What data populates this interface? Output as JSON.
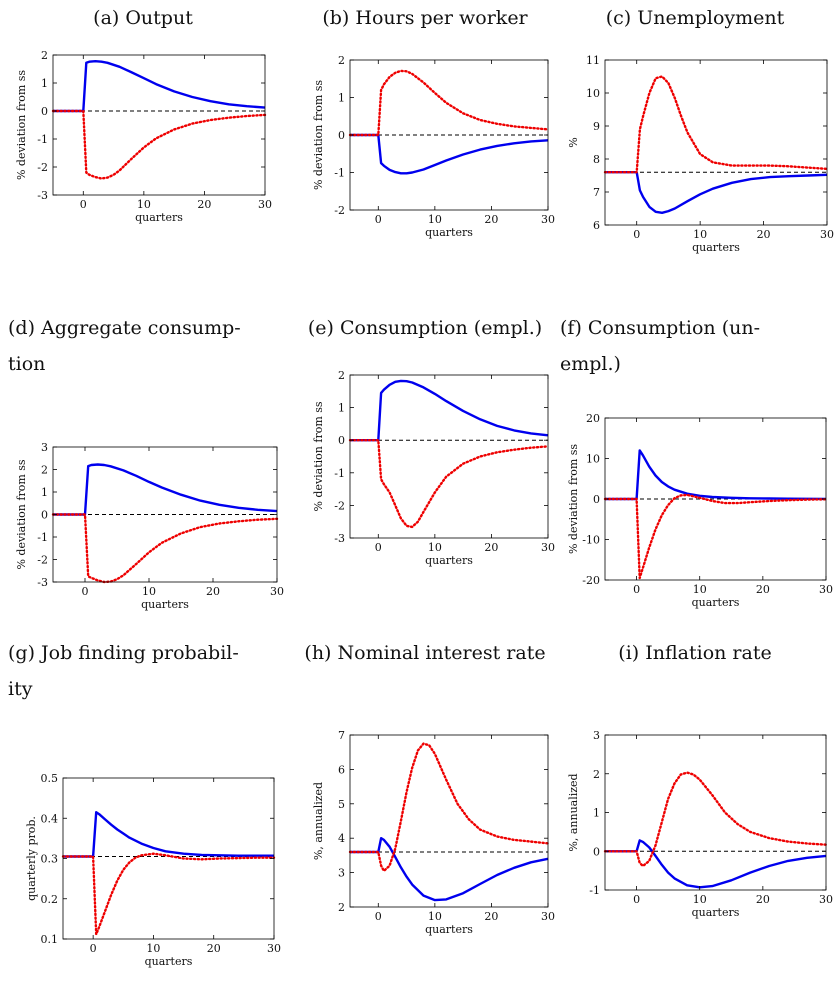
{
  "chart_data": [
    {
      "id": "a",
      "type": "line",
      "title": "(a) Output",
      "xlabel": "quarters",
      "ylabel": "% deviation from ss",
      "xlim": [
        -5,
        30
      ],
      "ylim": [
        -3,
        2
      ],
      "xticks": [
        0,
        10,
        20,
        30
      ],
      "yticks": [
        -3,
        -2,
        -1,
        0,
        1,
        2
      ],
      "reference": 0,
      "series": [
        {
          "color": "#0000ee",
          "style": "solid",
          "x": [
            -5,
            -1,
            0,
            0.5,
            1,
            2,
            3,
            4,
            6,
            8,
            10,
            12,
            15,
            18,
            21,
            24,
            27,
            30
          ],
          "y": [
            0,
            0,
            0,
            1.72,
            1.76,
            1.78,
            1.76,
            1.72,
            1.58,
            1.38,
            1.17,
            0.96,
            0.7,
            0.5,
            0.35,
            0.24,
            0.17,
            0.12
          ]
        },
        {
          "color": "#ee0000",
          "style": "dotted",
          "x": [
            -5,
            -1,
            0,
            0.5,
            1,
            2,
            3,
            4,
            5,
            6,
            8,
            10,
            12,
            15,
            18,
            21,
            24,
            27,
            30
          ],
          "y": [
            0,
            0,
            0,
            -2.2,
            -2.28,
            -2.36,
            -2.41,
            -2.38,
            -2.28,
            -2.12,
            -1.7,
            -1.3,
            -0.98,
            -0.66,
            -0.45,
            -0.32,
            -0.24,
            -0.18,
            -0.14
          ]
        }
      ]
    },
    {
      "id": "b",
      "type": "line",
      "title": "(b) Hours per worker",
      "xlabel": "quarters",
      "ylabel": "% deviation from ss",
      "xlim": [
        -5,
        30
      ],
      "ylim": [
        -2,
        2
      ],
      "xticks": [
        0,
        10,
        20,
        30
      ],
      "yticks": [
        -2,
        -1,
        0,
        1,
        2
      ],
      "reference": 0,
      "series": [
        {
          "color": "#0000ee",
          "style": "solid",
          "x": [
            -5,
            -1,
            0,
            0.5,
            1,
            2,
            3,
            4,
            5,
            6,
            8,
            10,
            12,
            15,
            18,
            21,
            24,
            27,
            30
          ],
          "y": [
            0,
            0,
            0,
            -0.75,
            -0.82,
            -0.93,
            -0.99,
            -1.02,
            -1.02,
            -1.0,
            -0.92,
            -0.8,
            -0.68,
            -0.52,
            -0.39,
            -0.29,
            -0.22,
            -0.17,
            -0.14
          ]
        },
        {
          "color": "#ee0000",
          "style": "dotted",
          "x": [
            -5,
            -1,
            0,
            0.5,
            1,
            2,
            3,
            4,
            5,
            6,
            8,
            10,
            12,
            15,
            18,
            21,
            24,
            27,
            30
          ],
          "y": [
            0,
            0,
            0,
            1.2,
            1.35,
            1.55,
            1.66,
            1.71,
            1.7,
            1.63,
            1.4,
            1.12,
            0.86,
            0.58,
            0.4,
            0.3,
            0.23,
            0.19,
            0.15
          ]
        }
      ]
    },
    {
      "id": "c",
      "type": "line",
      "title": "(c) Unemployment",
      "xlabel": "quarters",
      "ylabel": "%",
      "xlim": [
        -5,
        30
      ],
      "ylim": [
        6,
        11
      ],
      "xticks": [
        0,
        10,
        20,
        30
      ],
      "yticks": [
        6,
        7,
        8,
        9,
        10,
        11
      ],
      "reference": 7.6,
      "series": [
        {
          "color": "#0000ee",
          "style": "solid",
          "x": [
            -5,
            -1,
            0,
            0.5,
            1,
            2,
            3,
            4,
            5,
            6,
            8,
            10,
            12,
            15,
            18,
            21,
            24,
            27,
            30
          ],
          "y": [
            7.6,
            7.6,
            7.6,
            7.05,
            6.85,
            6.55,
            6.4,
            6.37,
            6.42,
            6.5,
            6.72,
            6.93,
            7.1,
            7.28,
            7.39,
            7.45,
            7.48,
            7.5,
            7.52
          ]
        },
        {
          "color": "#ee0000",
          "style": "dotted",
          "x": [
            -5,
            -1,
            0,
            0.5,
            1,
            2,
            3,
            4,
            5,
            6,
            7,
            8,
            10,
            12,
            15,
            18,
            21,
            24,
            27,
            30
          ],
          "y": [
            7.6,
            7.6,
            7.6,
            8.9,
            9.3,
            10.0,
            10.45,
            10.5,
            10.3,
            9.85,
            9.3,
            8.8,
            8.15,
            7.9,
            7.8,
            7.8,
            7.8,
            7.78,
            7.74,
            7.7
          ]
        }
      ]
    },
    {
      "id": "d",
      "type": "line",
      "title": "(d) Aggregate consump-tion",
      "title_line1": "(d) Aggregate consump-",
      "title_line2": "tion",
      "xlabel": "quarters",
      "ylabel": "% deviation from ss",
      "xlim": [
        -5,
        30
      ],
      "ylim": [
        -3,
        3
      ],
      "xticks": [
        0,
        10,
        20,
        30
      ],
      "yticks": [
        -3,
        -2,
        -1,
        0,
        1,
        2,
        3
      ],
      "reference": 0,
      "series": [
        {
          "color": "#0000ee",
          "style": "solid",
          "x": [
            -5,
            -1,
            0,
            0.5,
            1,
            2,
            3,
            4,
            6,
            8,
            10,
            12,
            15,
            18,
            21,
            24,
            27,
            30
          ],
          "y": [
            0,
            0,
            0,
            2.15,
            2.2,
            2.22,
            2.2,
            2.14,
            1.96,
            1.72,
            1.45,
            1.2,
            0.88,
            0.62,
            0.43,
            0.3,
            0.21,
            0.15
          ]
        },
        {
          "color": "#ee0000",
          "style": "dotted",
          "x": [
            -5,
            -1,
            0,
            0.5,
            1,
            2,
            3,
            4,
            5,
            6,
            8,
            10,
            12,
            15,
            18,
            21,
            24,
            27,
            30
          ],
          "y": [
            0,
            0,
            0,
            -2.75,
            -2.82,
            -2.93,
            -3.0,
            -2.98,
            -2.88,
            -2.7,
            -2.2,
            -1.68,
            -1.26,
            -0.84,
            -0.56,
            -0.4,
            -0.3,
            -0.23,
            -0.19
          ]
        }
      ]
    },
    {
      "id": "e",
      "type": "line",
      "title": "(e) Consumption (empl.)",
      "xlabel": "quarters",
      "ylabel": "% deviation from ss",
      "xlim": [
        -5,
        30
      ],
      "ylim": [
        -3,
        2
      ],
      "xticks": [
        0,
        10,
        20,
        30
      ],
      "yticks": [
        -3,
        -2,
        -1,
        0,
        1,
        2
      ],
      "reference": 0,
      "series": [
        {
          "color": "#0000ee",
          "style": "solid",
          "x": [
            -5,
            -1,
            0,
            0.5,
            1,
            2,
            3,
            4,
            5,
            6,
            8,
            10,
            12,
            15,
            18,
            21,
            24,
            27,
            30
          ],
          "y": [
            0,
            0,
            0,
            1.45,
            1.55,
            1.7,
            1.79,
            1.82,
            1.81,
            1.77,
            1.62,
            1.42,
            1.2,
            0.9,
            0.64,
            0.44,
            0.3,
            0.21,
            0.15
          ]
        },
        {
          "color": "#ee0000",
          "style": "dotted",
          "x": [
            -5,
            -1,
            0,
            0.5,
            1,
            2,
            3,
            4,
            5,
            6,
            7,
            8,
            10,
            12,
            15,
            18,
            21,
            24,
            27,
            30
          ],
          "y": [
            0,
            0,
            0,
            -1.2,
            -1.35,
            -1.6,
            -2.0,
            -2.4,
            -2.63,
            -2.66,
            -2.5,
            -2.2,
            -1.6,
            -1.12,
            -0.72,
            -0.5,
            -0.37,
            -0.29,
            -0.23,
            -0.19
          ]
        }
      ]
    },
    {
      "id": "f",
      "type": "line",
      "title": "(f) Consumption (un-empl.)",
      "title_line1": "(f) Consumption (un-",
      "title_line2": "empl.)",
      "xlabel": "quarters",
      "ylabel": "% deviation from ss",
      "xlim": [
        -5,
        30
      ],
      "ylim": [
        -20,
        20
      ],
      "xticks": [
        0,
        10,
        20,
        30
      ],
      "yticks": [
        -20,
        -10,
        0,
        10,
        20
      ],
      "reference": 0,
      "series": [
        {
          "color": "#0000ee",
          "style": "solid",
          "x": [
            -5,
            -1,
            0,
            0.5,
            1,
            2,
            3,
            4,
            5,
            6,
            8,
            10,
            12,
            15,
            18,
            21,
            24,
            27,
            30
          ],
          "y": [
            0,
            0,
            0,
            12.0,
            10.8,
            8.0,
            5.8,
            4.2,
            3.1,
            2.3,
            1.3,
            0.8,
            0.5,
            0.3,
            0.18,
            0.12,
            0.08,
            0.05,
            0.03
          ]
        },
        {
          "color": "#ee0000",
          "style": "dotted",
          "x": [
            -5,
            -1,
            0,
            0.5,
            1,
            2,
            3,
            4,
            5,
            6,
            7,
            8,
            10,
            12,
            14,
            16,
            18,
            21,
            24,
            27,
            30
          ],
          "y": [
            0,
            0,
            0,
            -19.5,
            -17.0,
            -12.0,
            -7.5,
            -4.0,
            -1.5,
            0.2,
            0.9,
            1.0,
            0.3,
            -0.5,
            -1.0,
            -1.0,
            -0.8,
            -0.5,
            -0.3,
            -0.15,
            -0.08
          ]
        }
      ]
    },
    {
      "id": "g",
      "type": "line",
      "title": "(g) Job finding probabil-ity",
      "title_line1": "(g) Job finding probabil-",
      "title_line2": "ity",
      "xlabel": "quarters",
      "ylabel": "quarterly prob.",
      "xlim": [
        -5,
        30
      ],
      "ylim": [
        0.1,
        0.5
      ],
      "xticks": [
        0,
        10,
        20,
        30
      ],
      "yticks": [
        0.1,
        0.2,
        0.3,
        0.4,
        0.5
      ],
      "reference": 0.305,
      "series": [
        {
          "color": "#0000ee",
          "style": "solid",
          "x": [
            -5,
            -1,
            0,
            0.5,
            1,
            2,
            3,
            4,
            5,
            6,
            8,
            10,
            12,
            15,
            18,
            21,
            24,
            27,
            30
          ],
          "y": [
            0.305,
            0.305,
            0.305,
            0.415,
            0.41,
            0.397,
            0.384,
            0.372,
            0.362,
            0.352,
            0.337,
            0.326,
            0.318,
            0.312,
            0.309,
            0.308,
            0.307,
            0.307,
            0.307
          ]
        },
        {
          "color": "#ee0000",
          "style": "dotted",
          "x": [
            -5,
            -1,
            0,
            0.5,
            1,
            2,
            3,
            4,
            5,
            6,
            7,
            8,
            10,
            12,
            15,
            18,
            21,
            24,
            27,
            30
          ],
          "y": [
            0.305,
            0.305,
            0.305,
            0.112,
            0.13,
            0.17,
            0.21,
            0.245,
            0.272,
            0.29,
            0.302,
            0.308,
            0.312,
            0.308,
            0.3,
            0.298,
            0.3,
            0.301,
            0.302,
            0.302
          ]
        }
      ]
    },
    {
      "id": "h",
      "type": "line",
      "title": "(h) Nominal interest rate",
      "xlabel": "quarters",
      "ylabel": "%, annualized",
      "xlim": [
        -5,
        30
      ],
      "ylim": [
        2,
        7
      ],
      "xticks": [
        0,
        10,
        20,
        30
      ],
      "yticks": [
        2,
        3,
        4,
        5,
        6,
        7
      ],
      "reference": 3.6,
      "series": [
        {
          "color": "#0000ee",
          "style": "solid",
          "x": [
            -5,
            -1,
            0,
            0.5,
            1,
            2,
            3,
            4,
            5,
            6,
            8,
            10,
            12,
            15,
            18,
            21,
            24,
            27,
            30
          ],
          "y": [
            3.6,
            3.6,
            3.6,
            4.0,
            3.95,
            3.75,
            3.45,
            3.15,
            2.88,
            2.65,
            2.33,
            2.2,
            2.22,
            2.4,
            2.67,
            2.93,
            3.14,
            3.3,
            3.4
          ]
        },
        {
          "color": "#ee0000",
          "style": "dotted",
          "x": [
            -5,
            -1,
            0,
            0.5,
            1,
            2,
            3,
            4,
            5,
            6,
            7,
            8,
            9,
            10,
            12,
            14,
            16,
            18,
            21,
            24,
            27,
            30
          ],
          "y": [
            3.6,
            3.6,
            3.6,
            3.2,
            3.05,
            3.2,
            3.7,
            4.5,
            5.35,
            6.05,
            6.55,
            6.75,
            6.7,
            6.45,
            5.7,
            5.0,
            4.55,
            4.25,
            4.05,
            3.95,
            3.9,
            3.85
          ]
        }
      ]
    },
    {
      "id": "i",
      "type": "line",
      "title": "(i) Inflation rate",
      "xlabel": "quarters",
      "ylabel": "%, annualized",
      "xlim": [
        -5,
        30
      ],
      "ylim": [
        -1,
        3
      ],
      "xticks": [
        0,
        10,
        20,
        30
      ],
      "yticks": [
        -1,
        0,
        1,
        2,
        3
      ],
      "reference": 0,
      "series": [
        {
          "color": "#0000ee",
          "style": "solid",
          "x": [
            -5,
            -1,
            0,
            0.5,
            1,
            2,
            3,
            4,
            5,
            6,
            8,
            10,
            12,
            15,
            18,
            21,
            24,
            27,
            30
          ],
          "y": [
            0,
            0,
            0,
            0.28,
            0.24,
            0.1,
            -0.12,
            -0.35,
            -0.55,
            -0.7,
            -0.88,
            -0.93,
            -0.9,
            -0.75,
            -0.55,
            -0.38,
            -0.25,
            -0.17,
            -0.12
          ]
        },
        {
          "color": "#ee0000",
          "style": "dotted",
          "x": [
            -5,
            -1,
            0,
            0.5,
            1,
            2,
            3,
            4,
            5,
            6,
            7,
            8,
            9,
            10,
            12,
            14,
            16,
            18,
            21,
            24,
            27,
            30
          ],
          "y": [
            0,
            0,
            0,
            -0.3,
            -0.38,
            -0.25,
            0.15,
            0.75,
            1.35,
            1.75,
            1.98,
            2.03,
            1.98,
            1.85,
            1.45,
            1.0,
            0.7,
            0.5,
            0.34,
            0.25,
            0.2,
            0.17
          ]
        }
      ]
    }
  ]
}
